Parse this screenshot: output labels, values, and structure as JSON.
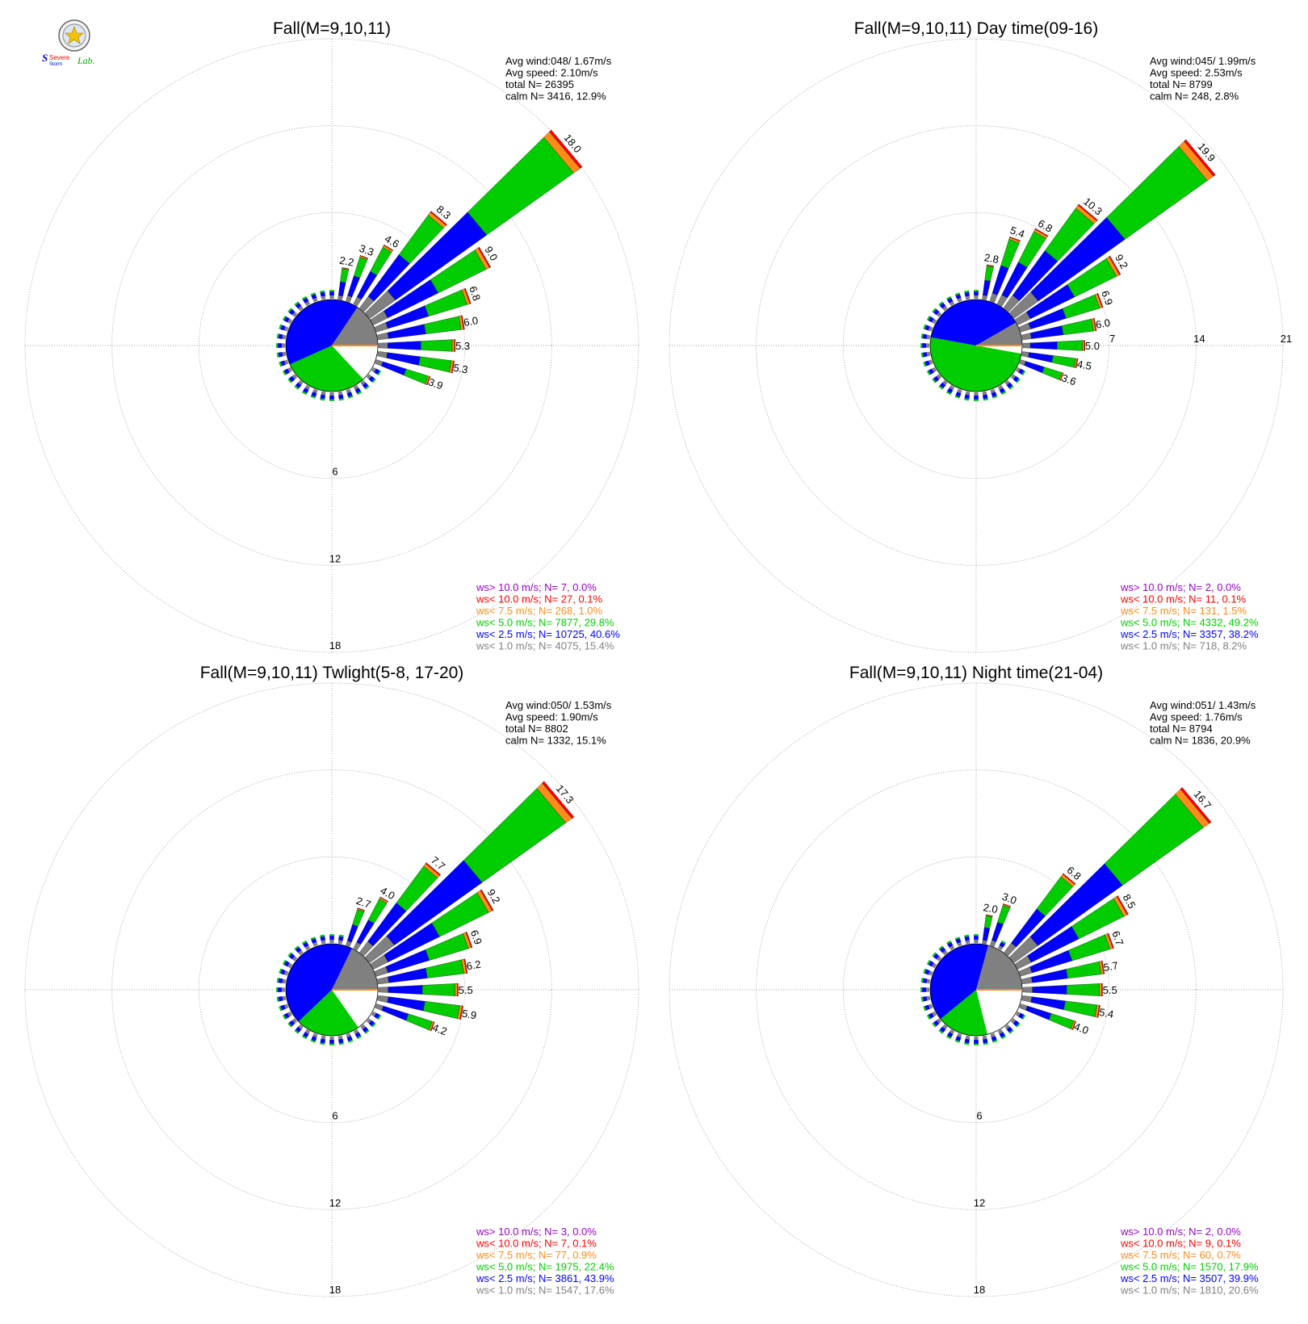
{
  "logo": {
    "text_main": "Severe",
    "text_sub": "Storm",
    "text_lab": "Lab."
  },
  "colors": {
    "gray": "#808080",
    "blue": "#0000ff",
    "green": "#00cc00",
    "orange": "#ff8c1a",
    "red": "#ff0000",
    "purple": "#9900cc",
    "grid": "#888888",
    "calm": "#ffffff"
  },
  "chart_data": [
    {
      "type": "wind-rose",
      "title": "Fall(M=9,10,11)",
      "rlim": [
        0,
        18
      ],
      "ring_labels": [
        "6",
        "12",
        "18"
      ],
      "stats": [
        "Avg wind:048/ 1.67m/s",
        "Avg speed: 2.10m/s",
        "total N=      26395",
        "calm N=   3416,  12.9%"
      ],
      "legend": [
        {
          "text": "ws> 10.0 m/s; N=      7,  0.0%",
          "color": "#9900cc"
        },
        {
          "text": "ws< 10.0 m/s; N=     27,  0.1%",
          "color": "#ff0000"
        },
        {
          "text": "ws<  7.5 m/s; N=    268,  1.0%",
          "color": "#ff8c1a"
        },
        {
          "text": "ws<  5.0 m/s; N=   7877, 29.8%",
          "color": "#00cc00"
        },
        {
          "text": "ws<  2.5 m/s; N=  10725, 40.6%",
          "color": "#0000ff"
        },
        {
          "text": "ws<  1.0 m/s; N=   4075, 15.4%",
          "color": "#808080"
        }
      ],
      "calm_pie": [
        {
          "color": "#ffffff",
          "percent": 12.9
        },
        {
          "color": "#00cc00",
          "percent": 29.8
        },
        {
          "color": "#0000ff",
          "percent": 40.6
        },
        {
          "color": "#808080",
          "percent": 15.4
        }
      ],
      "sectors": [
        {
          "dir": 10,
          "total": 2.2,
          "label": "2.2"
        },
        {
          "dir": 20,
          "total": 3.3,
          "label": "3.3"
        },
        {
          "dir": 30,
          "total": 4.6,
          "label": "4.6"
        },
        {
          "dir": 40,
          "total": 8.3,
          "label": "8.3"
        },
        {
          "dir": 50,
          "total": 18.0,
          "label": "18.0"
        },
        {
          "dir": 60,
          "total": 9.0,
          "label": "9.0"
        },
        {
          "dir": 70,
          "total": 6.8,
          "label": "6.8"
        },
        {
          "dir": 80,
          "total": 6.0,
          "label": "6.0"
        },
        {
          "dir": 90,
          "total": 5.3,
          "label": "5.3"
        },
        {
          "dir": 100,
          "total": 5.3,
          "label": "5.3"
        },
        {
          "dir": 110,
          "total": 3.9,
          "label": "3.9"
        }
      ]
    },
    {
      "type": "wind-rose",
      "title": "Fall(M=9,10,11) Day time(09-16)",
      "rlim": [
        0,
        21
      ],
      "ring_labels": [
        "7",
        "14",
        "21"
      ],
      "stats": [
        "Avg wind:045/ 1.99m/s",
        "Avg speed: 2.53m/s",
        "total N=       8799",
        "calm N=    248,   2.8%"
      ],
      "legend": [
        {
          "text": "ws> 10.0 m/s; N=      2,  0.0%",
          "color": "#9900cc"
        },
        {
          "text": "ws< 10.0 m/s; N=     11,  0.1%",
          "color": "#ff0000"
        },
        {
          "text": "ws<  7.5 m/s; N=    131,  1.5%",
          "color": "#ff8c1a"
        },
        {
          "text": "ws<  5.0 m/s; N=   4332, 49.2%",
          "color": "#00cc00"
        },
        {
          "text": "ws<  2.5 m/s; N=   3357, 38.2%",
          "color": "#0000ff"
        },
        {
          "text": "ws<  1.0 m/s; N=    718,  8.2%",
          "color": "#808080"
        }
      ],
      "calm_pie": [
        {
          "color": "#ffffff",
          "percent": 2.8
        },
        {
          "color": "#00cc00",
          "percent": 49.2
        },
        {
          "color": "#0000ff",
          "percent": 38.2
        },
        {
          "color": "#808080",
          "percent": 8.2
        }
      ],
      "sectors": [
        {
          "dir": 10,
          "total": 2.8,
          "label": "2.8"
        },
        {
          "dir": 20,
          "total": 5.4,
          "label": "5.4"
        },
        {
          "dir": 30,
          "total": 6.8,
          "label": "6.8"
        },
        {
          "dir": 40,
          "total": 10.3,
          "label": "10.3"
        },
        {
          "dir": 50,
          "total": 19.9,
          "label": "19.9"
        },
        {
          "dir": 60,
          "total": 9.2,
          "label": "9.2"
        },
        {
          "dir": 70,
          "total": 6.9,
          "label": "6.9"
        },
        {
          "dir": 80,
          "total": 6.0,
          "label": "6.0"
        },
        {
          "dir": 90,
          "total": 5.0,
          "label": "5.0"
        },
        {
          "dir": 100,
          "total": 4.5,
          "label": "4.5"
        },
        {
          "dir": 110,
          "total": 3.6,
          "label": "3.6"
        }
      ]
    },
    {
      "type": "wind-rose",
      "title": "Fall(M=9,10,11) Twlight(5-8, 17-20)",
      "rlim": [
        0,
        18
      ],
      "ring_labels": [
        "6",
        "12",
        "18"
      ],
      "stats": [
        "Avg wind:050/ 1.53m/s",
        "Avg speed: 1.90m/s",
        "total N=       8802",
        "calm N=   1332,  15.1%"
      ],
      "legend": [
        {
          "text": "ws> 10.0 m/s; N=      3,  0.0%",
          "color": "#9900cc"
        },
        {
          "text": "ws< 10.0 m/s; N=      7,  0.1%",
          "color": "#ff0000"
        },
        {
          "text": "ws<  7.5 m/s; N=     77,  0.9%",
          "color": "#ff8c1a"
        },
        {
          "text": "ws<  5.0 m/s; N=   1975, 22.4%",
          "color": "#00cc00"
        },
        {
          "text": "ws<  2.5 m/s; N=   3861, 43.9%",
          "color": "#0000ff"
        },
        {
          "text": "ws<  1.0 m/s; N=   1547, 17.6%",
          "color": "#808080"
        }
      ],
      "calm_pie": [
        {
          "color": "#ffffff",
          "percent": 15.1
        },
        {
          "color": "#00cc00",
          "percent": 22.4
        },
        {
          "color": "#0000ff",
          "percent": 43.9
        },
        {
          "color": "#808080",
          "percent": 17.6
        }
      ],
      "sectors": [
        {
          "dir": 20,
          "total": 2.7,
          "label": "2.7"
        },
        {
          "dir": 30,
          "total": 4.0,
          "label": "4.0"
        },
        {
          "dir": 40,
          "total": 7.7,
          "label": "7.7"
        },
        {
          "dir": 50,
          "total": 17.3,
          "label": "17.3"
        },
        {
          "dir": 60,
          "total": 9.2,
          "label": "9.2"
        },
        {
          "dir": 70,
          "total": 6.9,
          "label": "6.9"
        },
        {
          "dir": 80,
          "total": 6.2,
          "label": "6.2"
        },
        {
          "dir": 90,
          "total": 5.5,
          "label": "5.5"
        },
        {
          "dir": 100,
          "total": 5.9,
          "label": "5.9"
        },
        {
          "dir": 110,
          "total": 4.2,
          "label": "4.2"
        }
      ]
    },
    {
      "type": "wind-rose",
      "title": "Fall(M=9,10,11) Night time(21-04)",
      "rlim": [
        0,
        18
      ],
      "ring_labels": [
        "6",
        "12",
        "18"
      ],
      "stats": [
        "Avg wind:051/ 1.43m/s",
        "Avg speed: 1.76m/s",
        "total N=       8794",
        "calm N=   1836,  20.9%"
      ],
      "legend": [
        {
          "text": "ws> 10.0 m/s; N=      2,  0.0%",
          "color": "#9900cc"
        },
        {
          "text": "ws< 10.0 m/s; N=      9,  0.1%",
          "color": "#ff0000"
        },
        {
          "text": "ws<  7.5 m/s; N=     60,  0.7%",
          "color": "#ff8c1a"
        },
        {
          "text": "ws<  5.0 m/s; N=   1570, 17.9%",
          "color": "#00cc00"
        },
        {
          "text": "ws<  2.5 m/s; N=   3507, 39.9%",
          "color": "#0000ff"
        },
        {
          "text": "ws<  1.0 m/s; N=   1810, 20.6%",
          "color": "#808080"
        }
      ],
      "calm_pie": [
        {
          "color": "#ffffff",
          "percent": 20.9
        },
        {
          "color": "#00cc00",
          "percent": 17.9
        },
        {
          "color": "#0000ff",
          "percent": 39.9
        },
        {
          "color": "#808080",
          "percent": 20.6
        }
      ],
      "sectors": [
        {
          "dir": 10,
          "total": 2.0,
          "label": "2.0"
        },
        {
          "dir": 20,
          "total": 3.0,
          "label": "3.0"
        },
        {
          "dir": 40,
          "total": 6.8,
          "label": "6.8"
        },
        {
          "dir": 50,
          "total": 16.7,
          "label": "16.7"
        },
        {
          "dir": 60,
          "total": 8.5,
          "label": "8.5"
        },
        {
          "dir": 70,
          "total": 6.7,
          "label": "6.7"
        },
        {
          "dir": 80,
          "total": 5.7,
          "label": "5.7"
        },
        {
          "dir": 90,
          "total": 5.5,
          "label": "5.5"
        },
        {
          "dir": 100,
          "total": 5.4,
          "label": "5.4"
        },
        {
          "dir": 110,
          "total": 4.0,
          "label": "4.0"
        }
      ]
    }
  ]
}
